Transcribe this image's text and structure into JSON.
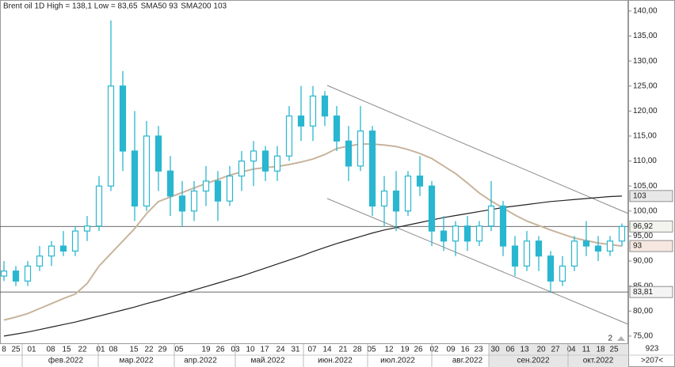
{
  "chart_data": {
    "type": "candlestick",
    "legend": [
      {
        "text": "Brent oil 1D High = 138,1 Low = 83,65",
        "color": "#222222"
      },
      {
        "text": "SMA50 93",
        "color": "#c8b49c"
      },
      {
        "text": "SMA200 103",
        "color": "#222222"
      }
    ],
    "candle_color": "#29b6d0",
    "open": [
      87,
      88,
      86,
      89,
      91,
      93,
      92,
      96,
      97,
      105,
      125,
      112,
      101,
      115,
      108,
      103,
      100,
      104,
      106,
      102,
      107,
      110,
      112,
      108,
      111,
      119,
      117,
      123,
      119,
      114,
      109,
      116,
      101,
      104,
      100,
      107,
      105,
      96,
      94,
      97,
      94,
      97,
      101,
      93,
      89,
      94,
      91,
      86,
      89,
      94,
      93,
      92,
      94
    ],
    "high": [
      90,
      89,
      90,
      93,
      94,
      96,
      97,
      99,
      107,
      138.1,
      128,
      120,
      118,
      117,
      111,
      106,
      106,
      109,
      108,
      109,
      112,
      114,
      113,
      113,
      121,
      125,
      125,
      124,
      121,
      117,
      121,
      117,
      107,
      108,
      108,
      111,
      106,
      99,
      98,
      99,
      98,
      106,
      102,
      95,
      96,
      95,
      92,
      91,
      95,
      98,
      95,
      95,
      97.5
    ],
    "low": [
      86,
      85,
      85,
      88,
      89,
      91,
      91,
      94,
      96,
      104,
      108,
      98,
      100,
      104,
      99,
      97,
      98,
      101,
      98,
      101,
      104,
      105,
      106,
      106,
      110,
      114,
      114,
      117,
      112,
      106,
      108,
      99,
      97,
      96,
      99,
      103,
      93,
      92,
      91,
      92,
      93,
      96,
      91,
      87,
      88,
      88,
      83.65,
      85,
      88,
      91,
      90,
      91,
      93
    ],
    "close": [
      88,
      86,
      89,
      91,
      93,
      92,
      96,
      97,
      105,
      125,
      112,
      101,
      115,
      108,
      103,
      100,
      104,
      106,
      102,
      107,
      110,
      112,
      108,
      111,
      119,
      117,
      123,
      119,
      114,
      109,
      116,
      101,
      104,
      100,
      107,
      105,
      96,
      94,
      97,
      94,
      97,
      101,
      93,
      89,
      94,
      91,
      86,
      89,
      94,
      93,
      92,
      94,
      96.92
    ],
    "series": [
      {
        "color": "#c8b49c",
        "values": [
          78.2,
          78.8,
          79.5,
          80.5,
          81.5,
          82.5,
          83.4,
          85.5,
          89,
          91.5,
          94,
          96.5,
          99.5,
          101.9,
          102.8,
          103.7,
          104.6,
          105.5,
          106.3,
          107.2,
          107.8,
          108.4,
          108.7,
          108.9,
          109.3,
          109.8,
          110.4,
          111.3,
          112.5,
          113,
          113.4,
          113.4,
          113.2,
          112.9,
          112.3,
          111.5,
          110.5,
          109,
          107.5,
          105.6,
          103.6,
          102,
          100.6,
          99.2,
          98,
          97.1,
          96.2,
          95.4,
          94.6,
          94.1,
          93.6,
          93.3,
          93
        ]
      },
      {
        "color": "#222222",
        "values": [
          75,
          75.4,
          75.8,
          76.3,
          76.8,
          77.3,
          77.8,
          78.4,
          79,
          79.6,
          80.2,
          80.8,
          81.5,
          82.1,
          82.8,
          83.5,
          84.2,
          84.9,
          85.6,
          86.3,
          87,
          87.8,
          88.6,
          89.4,
          90.2,
          91,
          91.9,
          92.7,
          93.5,
          94.2,
          94.9,
          95.6,
          96.2,
          96.7,
          97.2,
          97.7,
          98.2,
          98.7,
          99.1,
          99.5,
          99.9,
          100.3,
          100.7,
          101,
          101.3,
          101.6,
          101.9,
          102.1,
          102.3,
          102.5,
          102.7,
          102.9,
          103
        ]
      }
    ],
    "levels": [
      96.92,
      83.81
    ],
    "price_tags": [
      {
        "value": 103,
        "label": "103",
        "fill": "#e8e8e8"
      },
      {
        "value": 96.92,
        "label": "96,92",
        "fill": "#f4f4ee"
      },
      {
        "value": 93,
        "label": "93",
        "fill": "#f6e8e0"
      },
      {
        "value": 83.81,
        "label": "83,81",
        "fill": "#f4f4f4"
      }
    ],
    "ylim": [
      73.4,
      142.2
    ],
    "yticks": [
      {
        "value": 140,
        "label": "140,00"
      },
      {
        "value": 135,
        "label": "135,00"
      },
      {
        "value": 130,
        "label": "130,00"
      },
      {
        "value": 125,
        "label": "125,00"
      },
      {
        "value": 120,
        "label": "120,00"
      },
      {
        "value": 115,
        "label": "115,00"
      },
      {
        "value": 110,
        "label": "110,00"
      },
      {
        "value": 105,
        "label": "105,00"
      },
      {
        "value": 100,
        "label": "100,00"
      },
      {
        "value": 95,
        "label": "95,00"
      },
      {
        "value": 90,
        "label": "90,00"
      },
      {
        "value": 85,
        "label": "85,00"
      },
      {
        "value": 80,
        "label": "80,00"
      },
      {
        "value": 75,
        "label": "75,00"
      }
    ],
    "day_labels": [
      "8",
      "25",
      "01",
      "08",
      "15",
      "22",
      "01",
      "08",
      "15",
      "22",
      "29",
      "05",
      "19",
      "26",
      "03",
      "10",
      "17",
      "24",
      "31",
      "07",
      "14",
      "21",
      "28",
      "05",
      "12",
      "19",
      "26",
      "02",
      "09",
      "16",
      "23",
      "30",
      "06",
      "13",
      "20",
      "27",
      "04",
      "11",
      "18",
      "25"
    ],
    "month_labels": [
      "фев.2022",
      "мар.2022",
      "апр.2022",
      "май.2022",
      "июн.2022",
      "июл.2022",
      "авг.2022",
      "сен.2022",
      "окт.2022"
    ],
    "corner_labels": [
      "923",
      ">207<"
    ],
    "page_marker": "2"
  }
}
